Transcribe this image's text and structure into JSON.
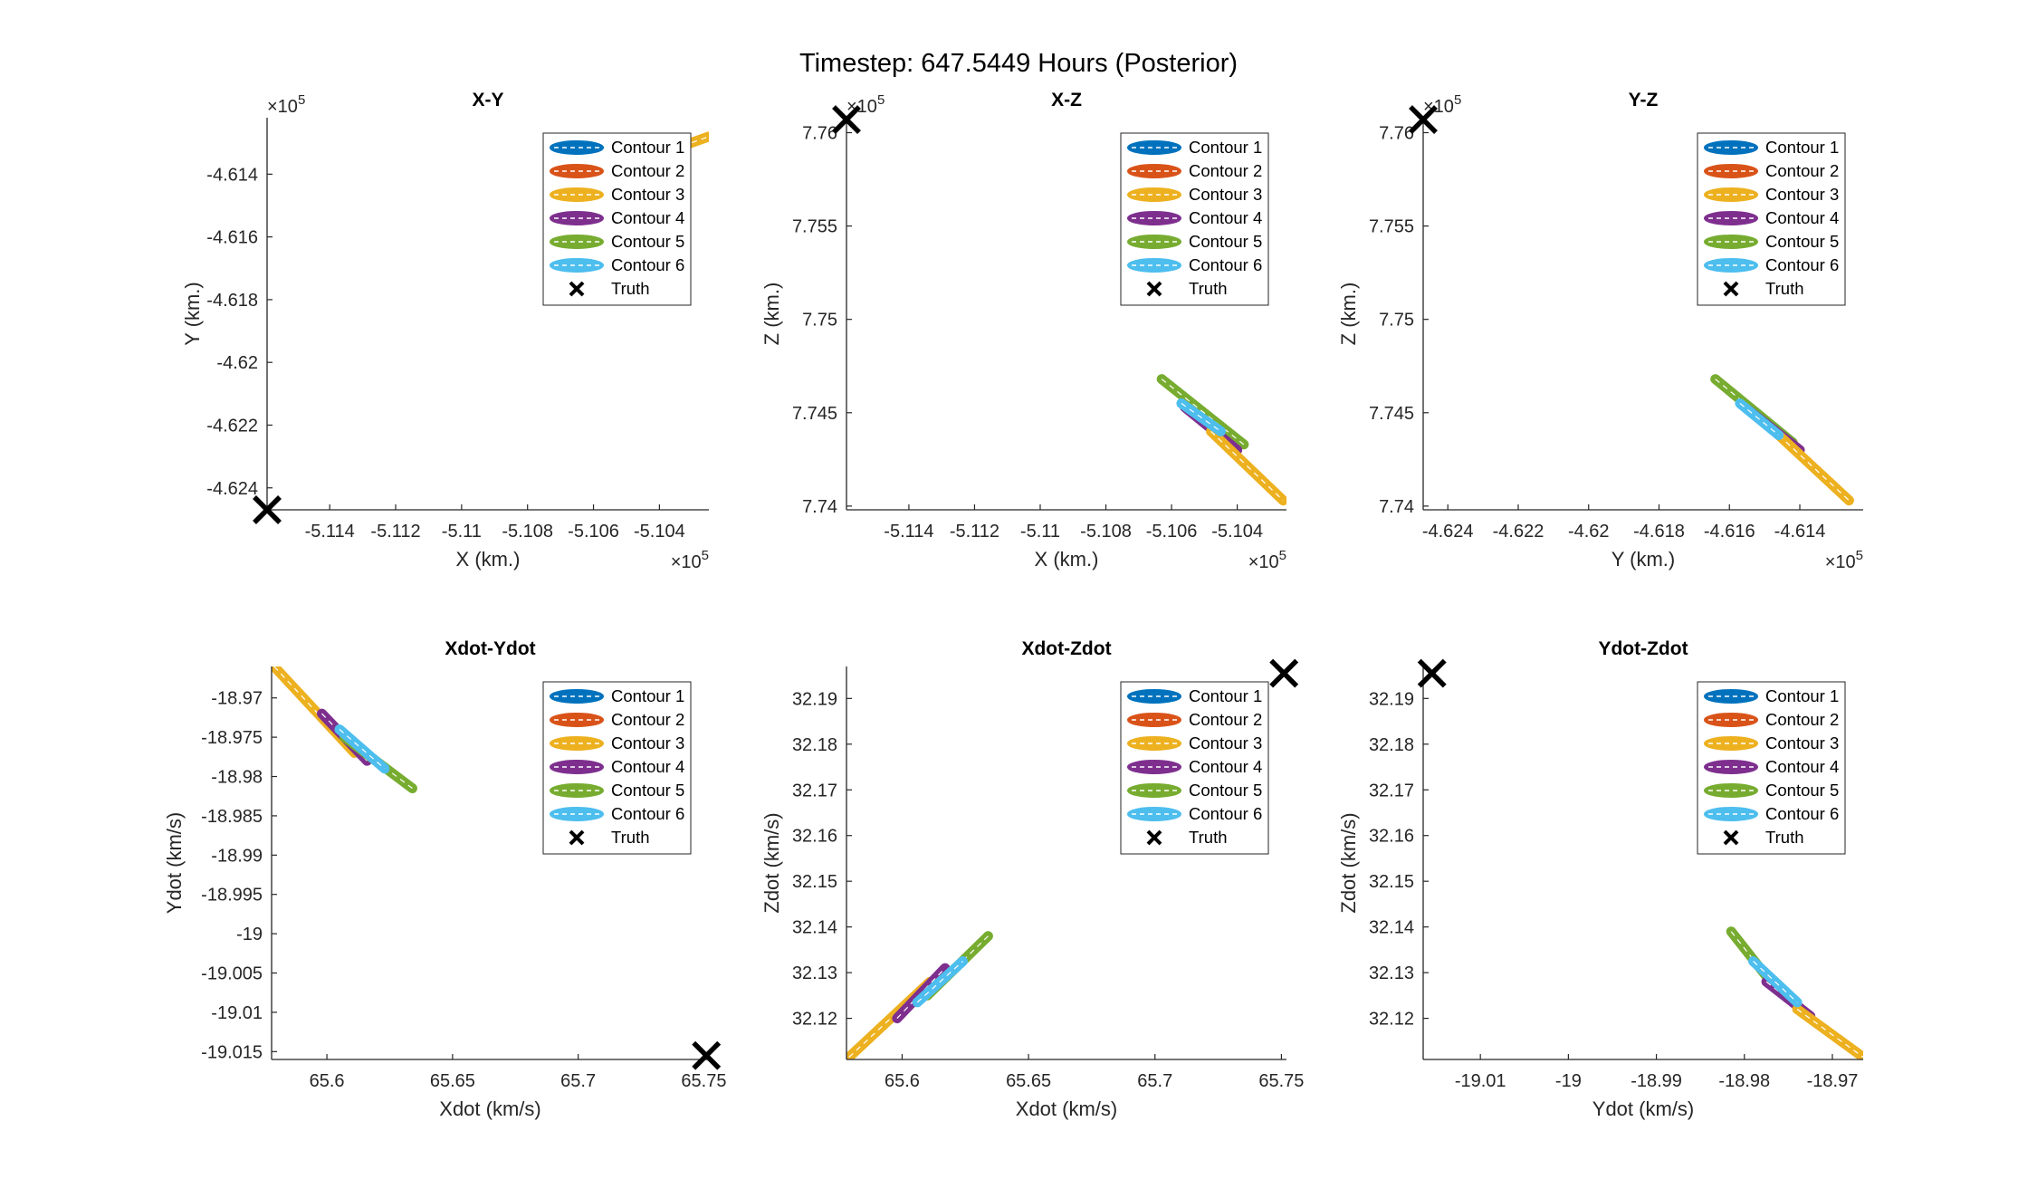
{
  "figure": {
    "title": "Timestep: 647.5449 Hours (Posterior)"
  },
  "colors": {
    "contour_1": "#0072BD",
    "contour_2": "#D95319",
    "contour_3": "#EDB120",
    "contour_4": "#7E2F8E",
    "contour_5": "#77AC30",
    "contour_6": "#4DBEEE",
    "truth": "#000000"
  },
  "legend": {
    "placement": "top-right",
    "entries": [
      "Contour 1",
      "Contour 2",
      "Contour 3",
      "Contour 4",
      "Contour 5",
      "Contour 6",
      "Truth"
    ]
  },
  "chart_data": [
    {
      "type": "scatter",
      "title": "X-Y",
      "xlabel": "X (km.)",
      "ylabel": "Y (km.)",
      "x_exponent": "10^5",
      "y_exponent": "10^5",
      "xlim": [
        -5.1159,
        -5.1025
      ],
      "ylim": [
        -4.6247,
        -4.6122
      ],
      "xticks": [
        -5.114,
        -5.112,
        -5.11,
        -5.108,
        -5.106,
        -5.104
      ],
      "xticklabels": [
        "-5.114",
        "-5.112",
        "-5.11",
        "-5.108",
        "-5.106",
        "-5.104"
      ],
      "yticks": [
        -4.624,
        -4.622,
        -4.62,
        -4.618,
        -4.616,
        -4.614
      ],
      "yticklabels": [
        "-4.624",
        "-4.622",
        "-4.62",
        "-4.618",
        "-4.616",
        "-4.614"
      ],
      "truth": [
        -5.1159,
        -4.6247
      ],
      "series": [
        {
          "name": "Contour 3",
          "x": [
            -5.1033,
            -5.1025
          ],
          "y": [
            -4.6131,
            -4.6128
          ]
        }
      ],
      "grid": false,
      "legend": "top-right"
    },
    {
      "type": "scatter",
      "title": "X-Z",
      "xlabel": "X (km.)",
      "ylabel": "Z (km.)",
      "x_exponent": "10^5",
      "y_exponent": "10^5",
      "xlim": [
        -5.1159,
        -5.1025
      ],
      "ylim": [
        7.7398,
        7.7608
      ],
      "xticks": [
        -5.114,
        -5.112,
        -5.11,
        -5.108,
        -5.106,
        -5.104
      ],
      "xticklabels": [
        "-5.114",
        "-5.112",
        "-5.11",
        "-5.108",
        "-5.106",
        "-5.104"
      ],
      "yticks": [
        7.74,
        7.745,
        7.75,
        7.755,
        7.76
      ],
      "yticklabels": [
        "7.74",
        "7.745",
        "7.75",
        "7.755",
        "7.76"
      ],
      "truth": [
        -5.1159,
        7.7607
      ],
      "series": [
        {
          "name": "Contour 5",
          "x": [
            -5.1063,
            -5.1038
          ],
          "y": [
            7.7468,
            7.7433
          ]
        },
        {
          "name": "Contour 4",
          "x": [
            -5.1056,
            -5.104
          ],
          "y": [
            7.7453,
            7.743
          ]
        },
        {
          "name": "Contour 3",
          "x": [
            -5.1048,
            -5.1026
          ],
          "y": [
            7.744,
            7.7403
          ]
        },
        {
          "name": "Contour 6",
          "x": [
            -5.1057,
            -5.1045
          ],
          "y": [
            7.7455,
            7.744
          ]
        }
      ],
      "grid": false,
      "legend": "top-right"
    },
    {
      "type": "scatter",
      "title": "Y-Z",
      "xlabel": "Y (km.)",
      "ylabel": "Z (km.)",
      "x_exponent": "10^5",
      "y_exponent": "10^5",
      "xlim": [
        -4.6247,
        -4.6122
      ],
      "ylim": [
        7.7398,
        7.7608
      ],
      "xticks": [
        -4.624,
        -4.622,
        -4.62,
        -4.618,
        -4.616,
        -4.614
      ],
      "xticklabels": [
        "-4.624",
        "-4.622",
        "-4.62",
        "-4.618",
        "-4.616",
        "-4.614"
      ],
      "yticks": [
        7.74,
        7.745,
        7.75,
        7.755,
        7.76
      ],
      "yticklabels": [
        "7.74",
        "7.745",
        "7.75",
        "7.755",
        "7.76"
      ],
      "truth": [
        -4.6247,
        7.7607
      ],
      "series": [
        {
          "name": "Contour 5",
          "x": [
            -4.6164,
            -4.6142
          ],
          "y": [
            7.7468,
            7.7434
          ]
        },
        {
          "name": "Contour 4",
          "x": [
            -4.6155,
            -4.614
          ],
          "y": [
            7.7452,
            7.743
          ]
        },
        {
          "name": "Contour 3",
          "x": [
            -4.6146,
            -4.6126
          ],
          "y": [
            7.7438,
            7.7403
          ]
        },
        {
          "name": "Contour 6",
          "x": [
            -4.6157,
            -4.6146
          ],
          "y": [
            7.7455,
            7.7438
          ]
        }
      ],
      "grid": false,
      "legend": "top-right"
    },
    {
      "type": "scatter",
      "title": "Xdot-Ydot",
      "xlabel": "Xdot (km/s)",
      "ylabel": "Ydot (km/s)",
      "xlim": [
        65.578,
        65.752
      ],
      "ylim": [
        -19.016,
        -18.966
      ],
      "xticks": [
        65.6,
        65.65,
        65.7,
        65.75
      ],
      "xticklabels": [
        "65.6",
        "65.65",
        "65.7",
        "65.75"
      ],
      "yticks": [
        -19.015,
        -19.01,
        -19.005,
        -19,
        -18.995,
        -18.99,
        -18.985,
        -18.98,
        -18.975,
        -18.97
      ],
      "yticklabels": [
        "-19.015",
        "-19.01",
        "-19.005",
        "-19",
        "-18.995",
        "-18.99",
        "-18.985",
        "-18.98",
        "-18.975",
        "-18.97"
      ],
      "truth": [
        65.751,
        -19.0155
      ],
      "series": [
        {
          "name": "Contour 3",
          "x": [
            65.579,
            65.611
          ],
          "y": [
            -18.966,
            -18.977
          ]
        },
        {
          "name": "Contour 4",
          "x": [
            65.598,
            65.616
          ],
          "y": [
            -18.972,
            -18.978
          ]
        },
        {
          "name": "Contour 5",
          "x": [
            65.607,
            65.634
          ],
          "y": [
            -18.975,
            -18.9815
          ]
        },
        {
          "name": "Contour 6",
          "x": [
            65.605,
            65.623
          ],
          "y": [
            -18.974,
            -18.979
          ]
        }
      ],
      "grid": false,
      "legend": "top-right"
    },
    {
      "type": "scatter",
      "title": "Xdot-Zdot",
      "xlabel": "Xdot (km/s)",
      "ylabel": "Zdot (km/s)",
      "xlim": [
        65.578,
        65.752
      ],
      "ylim": [
        32.111,
        32.197
      ],
      "xticks": [
        65.6,
        65.65,
        65.7,
        65.75
      ],
      "xticklabels": [
        "65.6",
        "65.65",
        "65.7",
        "65.75"
      ],
      "yticks": [
        32.12,
        32.13,
        32.14,
        32.15,
        32.16,
        32.17,
        32.18,
        32.19
      ],
      "yticklabels": [
        "32.12",
        "32.13",
        "32.14",
        "32.15",
        "32.16",
        "32.17",
        "32.18",
        "32.19"
      ],
      "truth": [
        65.751,
        32.1955
      ],
      "series": [
        {
          "name": "Contour 3",
          "x": [
            65.579,
            65.611
          ],
          "y": [
            32.1115,
            32.128
          ]
        },
        {
          "name": "Contour 4",
          "x": [
            65.598,
            65.617
          ],
          "y": [
            32.12,
            32.131
          ]
        },
        {
          "name": "Contour 5",
          "x": [
            65.61,
            65.634
          ],
          "y": [
            32.125,
            32.138
          ]
        },
        {
          "name": "Contour 6",
          "x": [
            65.606,
            65.624
          ],
          "y": [
            32.1235,
            32.1325
          ]
        }
      ],
      "grid": false,
      "legend": "top-right"
    },
    {
      "type": "scatter",
      "title": "Ydot-Zdot",
      "xlabel": "Ydot (km/s)",
      "ylabel": "Zdot (km/s)",
      "xlim": [
        -19.0165,
        -18.9665
      ],
      "ylim": [
        32.111,
        32.197
      ],
      "xticks": [
        -19.01,
        -19,
        -18.99,
        -18.98,
        -18.97
      ],
      "xticklabels": [
        "-19.01",
        "-19",
        "-18.99",
        "-18.98",
        "-18.97"
      ],
      "yticks": [
        32.12,
        32.13,
        32.14,
        32.15,
        32.16,
        32.17,
        32.18,
        32.19
      ],
      "yticklabels": [
        "32.12",
        "32.13",
        "32.14",
        "32.15",
        "32.16",
        "32.17",
        "32.18",
        "32.19"
      ],
      "truth": [
        -19.0155,
        32.1955
      ],
      "series": [
        {
          "name": "Contour 5",
          "x": [
            -18.9815,
            -18.977
          ],
          "y": [
            32.139,
            32.128
          ]
        },
        {
          "name": "Contour 4",
          "x": [
            -18.9775,
            -18.9725
          ],
          "y": [
            32.128,
            32.1205
          ]
        },
        {
          "name": "Contour 3",
          "x": [
            -18.974,
            -18.9665
          ],
          "y": [
            32.122,
            32.1115
          ]
        },
        {
          "name": "Contour 6",
          "x": [
            -18.979,
            -18.974
          ],
          "y": [
            32.1325,
            32.1235
          ]
        }
      ],
      "grid": false,
      "legend": "top-right"
    }
  ]
}
